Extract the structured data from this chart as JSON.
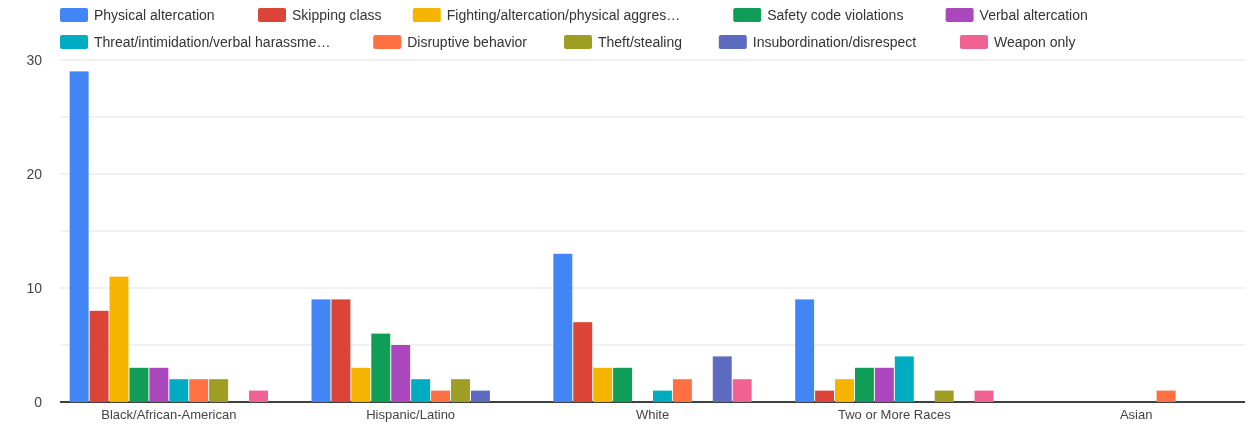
{
  "chart_data": {
    "type": "bar",
    "categories": [
      "Black/African-American",
      "Hispanic/Latino",
      "White",
      "Two or More Races",
      "Asian"
    ],
    "series": [
      {
        "name": "Physical altercation",
        "color": "#4285f4",
        "values": [
          29,
          9,
          13,
          9,
          null
        ]
      },
      {
        "name": "Skipping class",
        "color": "#db4437",
        "values": [
          8,
          9,
          7,
          1,
          null
        ]
      },
      {
        "name": "Fighting/altercation/physical aggres…",
        "color": "#f4b400",
        "values": [
          11,
          3,
          3,
          2,
          null
        ]
      },
      {
        "name": "Safety code violations",
        "color": "#0f9d58",
        "values": [
          3,
          6,
          3,
          3,
          null
        ]
      },
      {
        "name": "Verbal altercation",
        "color": "#ab47bc",
        "values": [
          3,
          5,
          null,
          3,
          null
        ]
      },
      {
        "name": "Threat/intimidation/verbal harassme…",
        "color": "#00acc1",
        "values": [
          2,
          2,
          1,
          4,
          null
        ]
      },
      {
        "name": "Disruptive behavior",
        "color": "#ff7043",
        "values": [
          2,
          1,
          2,
          null,
          1
        ]
      },
      {
        "name": "Theft/stealing",
        "color": "#9e9d24",
        "values": [
          2,
          2,
          null,
          1,
          null
        ]
      },
      {
        "name": "Insubordination/disrespect",
        "color": "#5c6bc0",
        "values": [
          null,
          1,
          4,
          null,
          null
        ]
      },
      {
        "name": "Weapon only",
        "color": "#f06292",
        "values": [
          1,
          null,
          2,
          1,
          null
        ]
      }
    ],
    "ylim": [
      0,
      30
    ],
    "yticks": [
      0,
      {
        "value": 5,
        "label": null
      },
      10,
      {
        "value": 15,
        "label": null
      },
      20,
      {
        "value": 25,
        "label": null
      },
      30
    ],
    "grid": "y",
    "legend": "top"
  }
}
